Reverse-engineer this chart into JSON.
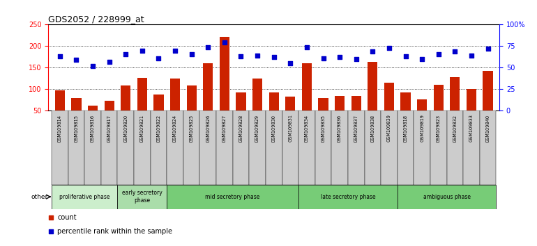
{
  "title": "GDS2052 / 228999_at",
  "samples": [
    "GSM109814",
    "GSM109815",
    "GSM109816",
    "GSM109817",
    "GSM109820",
    "GSM109821",
    "GSM109822",
    "GSM109824",
    "GSM109825",
    "GSM109826",
    "GSM109827",
    "GSM109828",
    "GSM109829",
    "GSM109830",
    "GSM109831",
    "GSM109834",
    "GSM109835",
    "GSM109836",
    "GSM109837",
    "GSM109838",
    "GSM109839",
    "GSM109818",
    "GSM109819",
    "GSM109823",
    "GSM109832",
    "GSM109833",
    "GSM109840"
  ],
  "counts": [
    97,
    79,
    61,
    73,
    109,
    126,
    88,
    124,
    109,
    160,
    221,
    93,
    124,
    93,
    83,
    160,
    79,
    85,
    85,
    163,
    115,
    93,
    77,
    110,
    128,
    101,
    142
  ],
  "percentiles": [
    63,
    59,
    52,
    57,
    66,
    70,
    61,
    70,
    66,
    74,
    79,
    63,
    64,
    62,
    55,
    74,
    61,
    62,
    60,
    69,
    73,
    63,
    60,
    66,
    69,
    64,
    72
  ],
  "bar_color": "#cc2200",
  "dot_color": "#0000cc",
  "ylim_left": [
    50,
    250
  ],
  "yticks_left": [
    50,
    100,
    150,
    200,
    250
  ],
  "yticks_right": [
    0,
    25,
    50,
    75,
    100
  ],
  "ytick_labels_right": [
    "0",
    "25",
    "50",
    "75",
    "100%"
  ],
  "phase_data": [
    {
      "label": "proliferative phase",
      "start": 0,
      "end": 4,
      "color": "#cceecc"
    },
    {
      "label": "early secretory\nphase",
      "start": 4,
      "end": 7,
      "color": "#aaddaa"
    },
    {
      "label": "mid secretory phase",
      "start": 7,
      "end": 15,
      "color": "#77cc77"
    },
    {
      "label": "late secretory phase",
      "start": 15,
      "end": 21,
      "color": "#77cc77"
    },
    {
      "label": "ambiguous phase",
      "start": 21,
      "end": 27,
      "color": "#77cc77"
    }
  ],
  "tick_bg_color": "#cccccc",
  "bg_color": "#ffffff"
}
